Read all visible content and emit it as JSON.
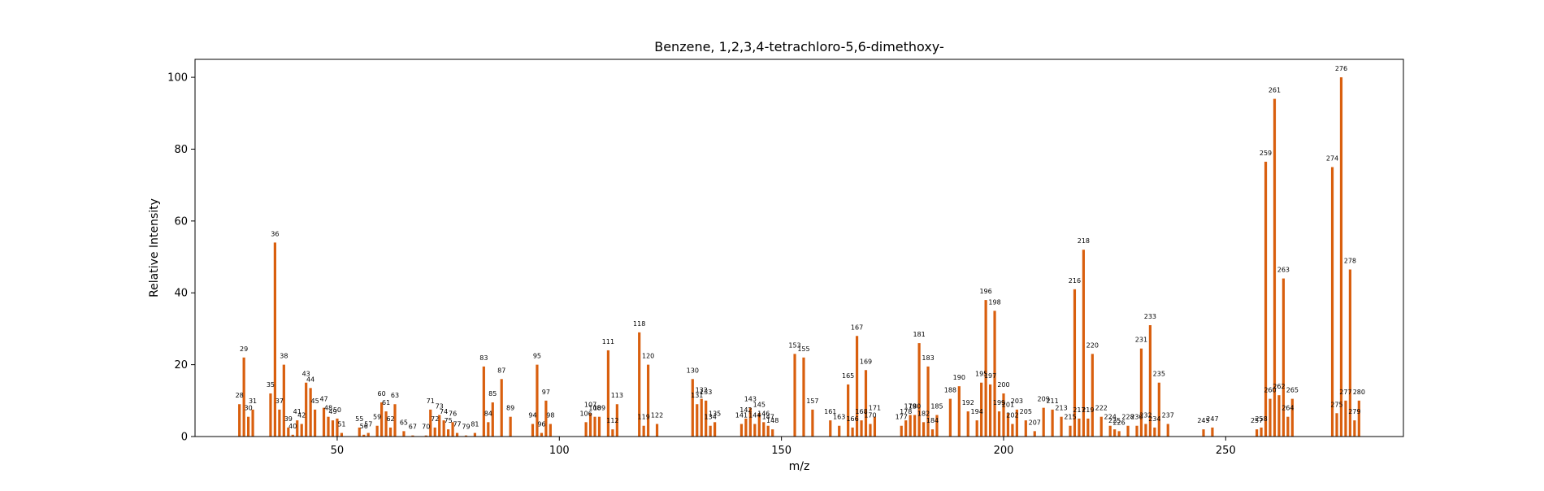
{
  "chart_data": {
    "type": "bar",
    "title": "Benzene, 1,2,3,4-tetrachloro-5,6-dimethoxy-",
    "xlabel": "m/z",
    "ylabel": "Relative Intensity",
    "xlim": [
      18,
      290
    ],
    "ylim": [
      0,
      105
    ],
    "xticks": [
      50,
      100,
      150,
      200,
      250
    ],
    "yticks": [
      0,
      20,
      40,
      60,
      80,
      100
    ],
    "bar_color": "#d95f0e",
    "grid": false,
    "peaks": [
      {
        "mz": 28,
        "intensity": 9
      },
      {
        "mz": 29,
        "intensity": 22
      },
      {
        "mz": 30,
        "intensity": 5.5
      },
      {
        "mz": 31,
        "intensity": 7.5
      },
      {
        "mz": 35,
        "intensity": 12
      },
      {
        "mz": 36,
        "intensity": 54
      },
      {
        "mz": 37,
        "intensity": 7.5
      },
      {
        "mz": 38,
        "intensity": 20
      },
      {
        "mz": 39,
        "intensity": 2.5
      },
      {
        "mz": 40,
        "intensity": 0.5
      },
      {
        "mz": 41,
        "intensity": 4.5
      },
      {
        "mz": 42,
        "intensity": 3.5
      },
      {
        "mz": 43,
        "intensity": 15
      },
      {
        "mz": 44,
        "intensity": 13.5
      },
      {
        "mz": 45,
        "intensity": 7.5
      },
      {
        "mz": 47,
        "intensity": 8
      },
      {
        "mz": 48,
        "intensity": 5.5
      },
      {
        "mz": 49,
        "intensity": 4.5
      },
      {
        "mz": 50,
        "intensity": 5
      },
      {
        "mz": 51,
        "intensity": 1
      },
      {
        "mz": 55,
        "intensity": 2.5
      },
      {
        "mz": 56,
        "intensity": 0.5
      },
      {
        "mz": 57,
        "intensity": 1
      },
      {
        "mz": 59,
        "intensity": 3
      },
      {
        "mz": 60,
        "intensity": 9.5
      },
      {
        "mz": 61,
        "intensity": 7
      },
      {
        "mz": 62,
        "intensity": 2.5
      },
      {
        "mz": 63,
        "intensity": 9
      },
      {
        "mz": 65,
        "intensity": 1.5
      },
      {
        "mz": 67,
        "intensity": 0.3
      },
      {
        "mz": 70,
        "intensity": 0.3
      },
      {
        "mz": 71,
        "intensity": 7.5
      },
      {
        "mz": 72,
        "intensity": 2.5
      },
      {
        "mz": 73,
        "intensity": 6
      },
      {
        "mz": 74,
        "intensity": 4.5
      },
      {
        "mz": 75,
        "intensity": 2
      },
      {
        "mz": 76,
        "intensity": 4
      },
      {
        "mz": 77,
        "intensity": 1
      },
      {
        "mz": 79,
        "intensity": 0.3
      },
      {
        "mz": 81,
        "intensity": 1
      },
      {
        "mz": 83,
        "intensity": 19.5
      },
      {
        "mz": 84,
        "intensity": 4
      },
      {
        "mz": 85,
        "intensity": 9.5
      },
      {
        "mz": 87,
        "intensity": 16
      },
      {
        "mz": 89,
        "intensity": 5.5
      },
      {
        "mz": 94,
        "intensity": 3.5
      },
      {
        "mz": 95,
        "intensity": 20
      },
      {
        "mz": 96,
        "intensity": 1
      },
      {
        "mz": 97,
        "intensity": 10
      },
      {
        "mz": 98,
        "intensity": 3.5
      },
      {
        "mz": 106,
        "intensity": 4
      },
      {
        "mz": 107,
        "intensity": 6.5
      },
      {
        "mz": 108,
        "intensity": 5.5
      },
      {
        "mz": 109,
        "intensity": 5.5
      },
      {
        "mz": 111,
        "intensity": 24
      },
      {
        "mz": 112,
        "intensity": 2
      },
      {
        "mz": 113,
        "intensity": 9
      },
      {
        "mz": 118,
        "intensity": 29
      },
      {
        "mz": 119,
        "intensity": 3
      },
      {
        "mz": 120,
        "intensity": 20
      },
      {
        "mz": 122,
        "intensity": 3.5
      },
      {
        "mz": 130,
        "intensity": 16
      },
      {
        "mz": 131,
        "intensity": 9
      },
      {
        "mz": 132,
        "intensity": 10.5
      },
      {
        "mz": 133,
        "intensity": 10
      },
      {
        "mz": 134,
        "intensity": 3
      },
      {
        "mz": 135,
        "intensity": 4
      },
      {
        "mz": 141,
        "intensity": 3.5
      },
      {
        "mz": 142,
        "intensity": 5
      },
      {
        "mz": 143,
        "intensity": 8
      },
      {
        "mz": 144,
        "intensity": 3.5
      },
      {
        "mz": 145,
        "intensity": 6.5
      },
      {
        "mz": 146,
        "intensity": 4
      },
      {
        "mz": 147,
        "intensity": 3
      },
      {
        "mz": 148,
        "intensity": 2
      },
      {
        "mz": 153,
        "intensity": 23
      },
      {
        "mz": 155,
        "intensity": 22
      },
      {
        "mz": 157,
        "intensity": 7.5
      },
      {
        "mz": 161,
        "intensity": 4.5
      },
      {
        "mz": 163,
        "intensity": 3
      },
      {
        "mz": 165,
        "intensity": 14.5
      },
      {
        "mz": 166,
        "intensity": 2.5
      },
      {
        "mz": 167,
        "intensity": 28
      },
      {
        "mz": 168,
        "intensity": 4.5
      },
      {
        "mz": 169,
        "intensity": 18.5
      },
      {
        "mz": 170,
        "intensity": 3.5
      },
      {
        "mz": 171,
        "intensity": 5.5
      },
      {
        "mz": 177,
        "intensity": 3
      },
      {
        "mz": 178,
        "intensity": 4.5
      },
      {
        "mz": 179,
        "intensity": 6
      },
      {
        "mz": 180,
        "intensity": 6
      },
      {
        "mz": 181,
        "intensity": 26
      },
      {
        "mz": 182,
        "intensity": 4
      },
      {
        "mz": 183,
        "intensity": 19.5
      },
      {
        "mz": 184,
        "intensity": 2
      },
      {
        "mz": 185,
        "intensity": 6
      },
      {
        "mz": 188,
        "intensity": 10.5
      },
      {
        "mz": 190,
        "intensity": 14
      },
      {
        "mz": 192,
        "intensity": 7
      },
      {
        "mz": 194,
        "intensity": 4.5
      },
      {
        "mz": 195,
        "intensity": 15
      },
      {
        "mz": 196,
        "intensity": 38
      },
      {
        "mz": 197,
        "intensity": 14.5
      },
      {
        "mz": 198,
        "intensity": 35
      },
      {
        "mz": 199,
        "intensity": 7
      },
      {
        "mz": 200,
        "intensity": 12
      },
      {
        "mz": 201,
        "intensity": 6.5
      },
      {
        "mz": 202,
        "intensity": 3.5
      },
      {
        "mz": 203,
        "intensity": 7.5
      },
      {
        "mz": 205,
        "intensity": 4.5
      },
      {
        "mz": 207,
        "intensity": 1.5
      },
      {
        "mz": 209,
        "intensity": 8
      },
      {
        "mz": 211,
        "intensity": 7.5
      },
      {
        "mz": 213,
        "intensity": 5.5
      },
      {
        "mz": 215,
        "intensity": 3
      },
      {
        "mz": 216,
        "intensity": 41
      },
      {
        "mz": 217,
        "intensity": 5
      },
      {
        "mz": 218,
        "intensity": 52
      },
      {
        "mz": 219,
        "intensity": 5
      },
      {
        "mz": 220,
        "intensity": 23
      },
      {
        "mz": 222,
        "intensity": 5.5
      },
      {
        "mz": 224,
        "intensity": 3
      },
      {
        "mz": 225,
        "intensity": 2
      },
      {
        "mz": 226,
        "intensity": 1.5
      },
      {
        "mz": 228,
        "intensity": 3
      },
      {
        "mz": 230,
        "intensity": 3
      },
      {
        "mz": 231,
        "intensity": 24.5
      },
      {
        "mz": 232,
        "intensity": 3.5
      },
      {
        "mz": 233,
        "intensity": 31
      },
      {
        "mz": 234,
        "intensity": 2.5
      },
      {
        "mz": 235,
        "intensity": 15
      },
      {
        "mz": 237,
        "intensity": 3.5
      },
      {
        "mz": 245,
        "intensity": 2
      },
      {
        "mz": 247,
        "intensity": 2.5
      },
      {
        "mz": 257,
        "intensity": 2
      },
      {
        "mz": 258,
        "intensity": 2.5
      },
      {
        "mz": 259,
        "intensity": 76.5
      },
      {
        "mz": 260,
        "intensity": 10.5
      },
      {
        "mz": 261,
        "intensity": 94
      },
      {
        "mz": 262,
        "intensity": 11.5
      },
      {
        "mz": 263,
        "intensity": 44
      },
      {
        "mz": 264,
        "intensity": 5.5
      },
      {
        "mz": 265,
        "intensity": 10.5
      },
      {
        "mz": 274,
        "intensity": 75
      },
      {
        "mz": 275,
        "intensity": 6.5
      },
      {
        "mz": 276,
        "intensity": 100
      },
      {
        "mz": 277,
        "intensity": 10
      },
      {
        "mz": 278,
        "intensity": 46.5
      },
      {
        "mz": 279,
        "intensity": 4.5
      },
      {
        "mz": 280,
        "intensity": 10
      }
    ]
  }
}
